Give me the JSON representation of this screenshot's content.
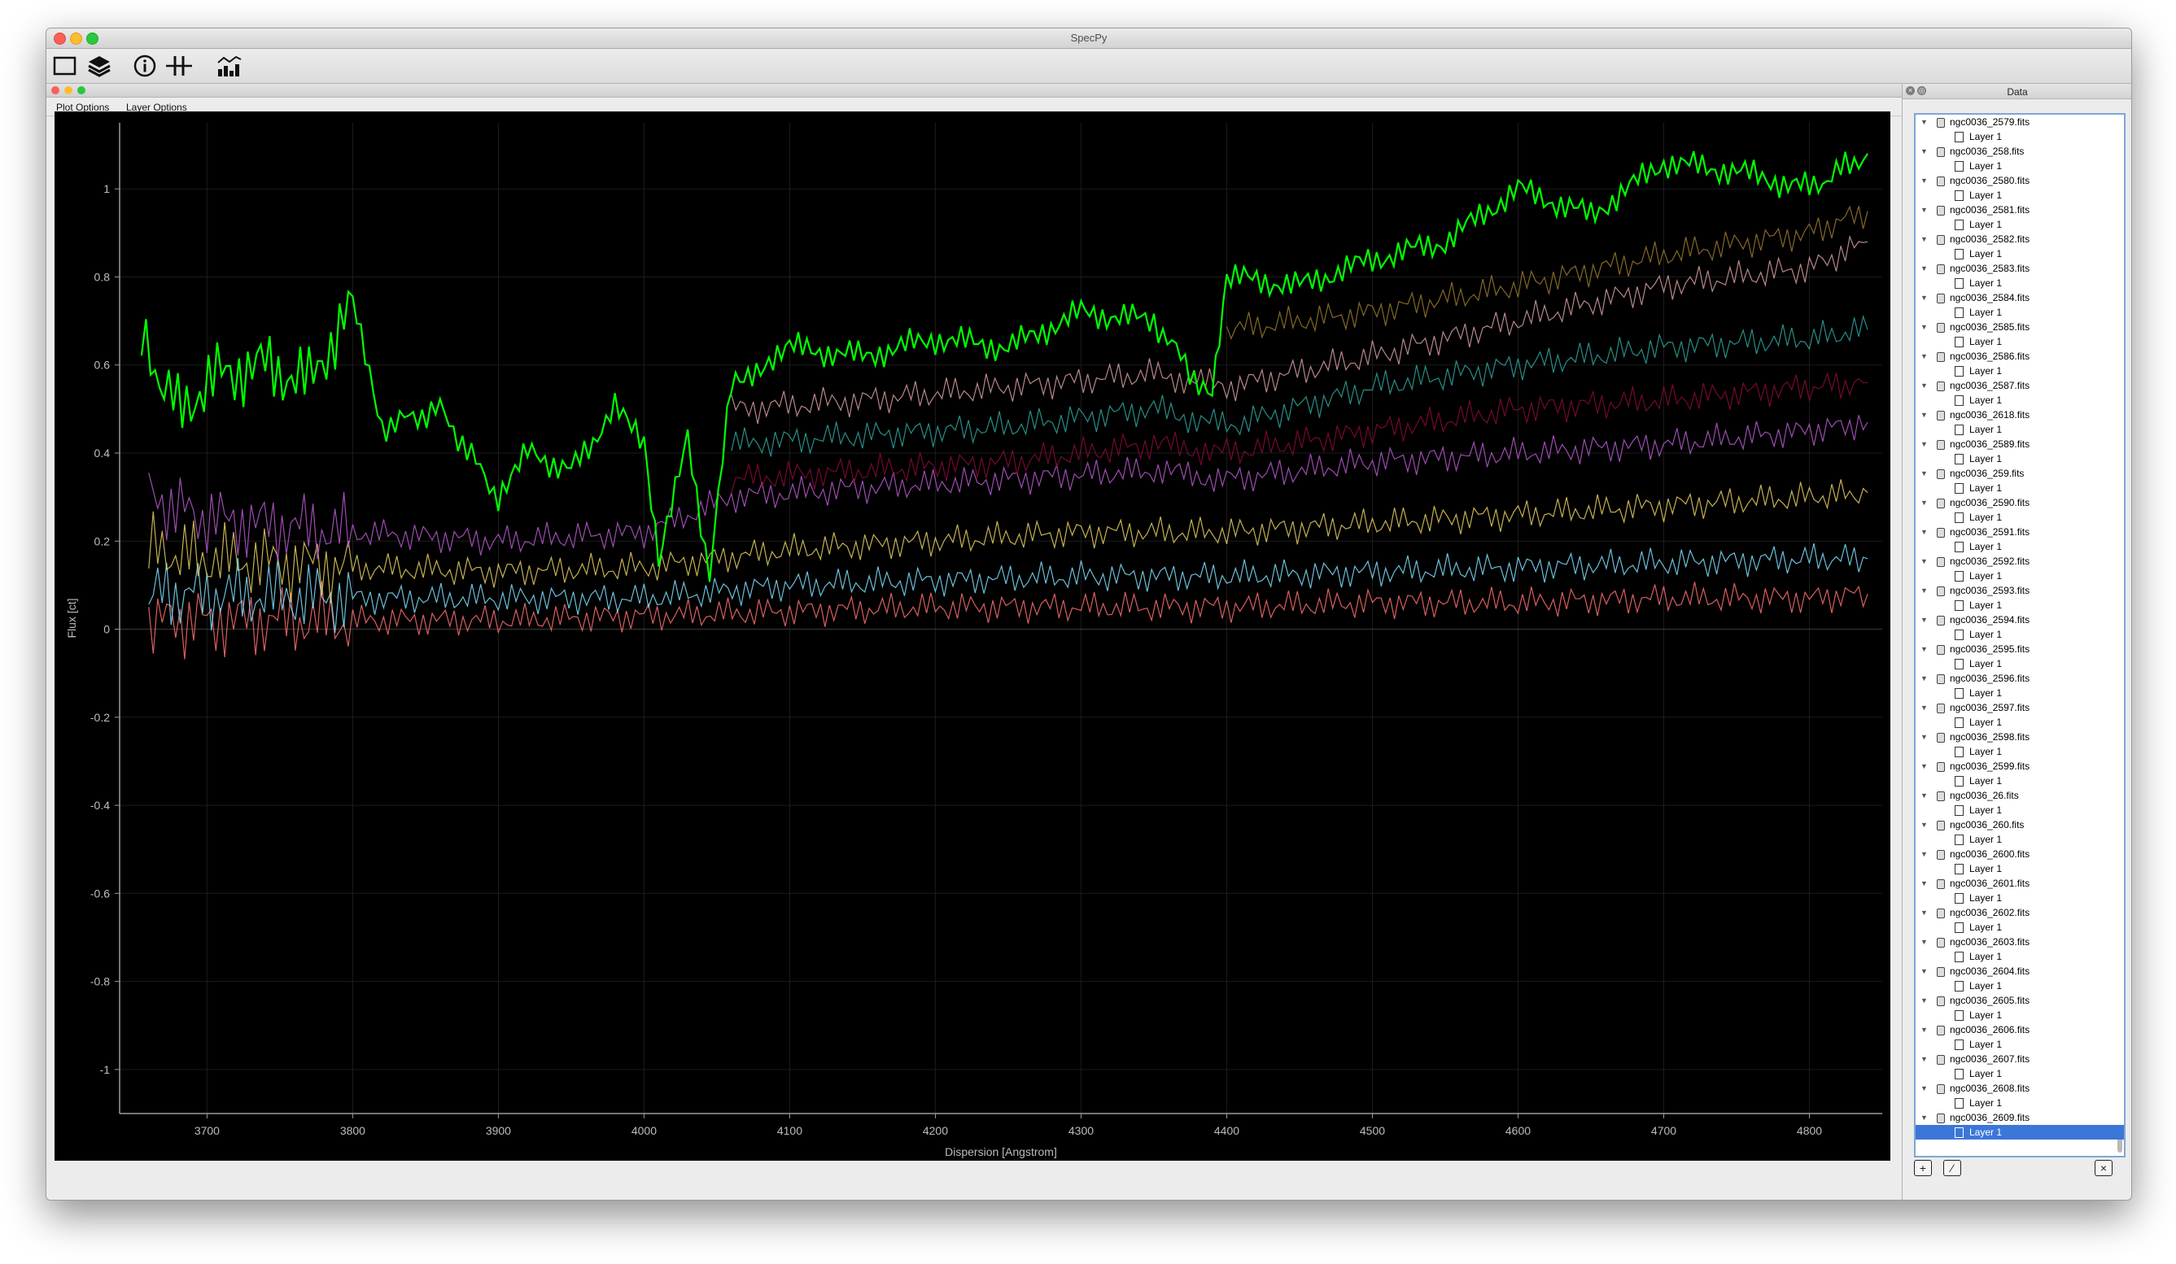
{
  "window": {
    "title": "SpecPy"
  },
  "toolbar": {
    "tools": [
      {
        "name": "rectangle-select-icon"
      },
      {
        "name": "layers-icon"
      },
      {
        "name": "info-icon"
      },
      {
        "name": "spectral-line-icon"
      },
      {
        "name": "statistics-icon"
      }
    ]
  },
  "subwindow": {
    "menu": {
      "plot_options": "Plot Options",
      "layer_options": "Layer Options"
    }
  },
  "chart_data": {
    "type": "line",
    "title": "",
    "xlabel": "Dispersion [Angstrom]",
    "ylabel": "Flux [ct]",
    "xlim": [
      3640,
      4850
    ],
    "ylim": [
      -1.1,
      1.15
    ],
    "x_ticks": [
      3700,
      3800,
      3900,
      4000,
      4100,
      4200,
      4300,
      4400,
      4500,
      4600,
      4700,
      4800
    ],
    "y_ticks": [
      -1,
      -0.8,
      -0.6,
      -0.4,
      -0.2,
      0,
      0.2,
      0.4,
      0.6,
      0.8,
      1
    ],
    "grid": true,
    "background": "#000000",
    "series": [
      {
        "color": "#00ff00",
        "x": [
          3655,
          3680,
          3710,
          3740,
          3770,
          3800,
          3820,
          3860,
          3900,
          3920,
          3950,
          3980,
          4000,
          4010,
          4030,
          4045,
          4060,
          4080,
          4100,
          4150,
          4200,
          4250,
          4300,
          4350,
          4390,
          4400,
          4450,
          4500,
          4550,
          4600,
          4650,
          4700,
          4750,
          4800,
          4840
        ],
        "y": [
          0.65,
          0.5,
          0.58,
          0.6,
          0.56,
          0.74,
          0.46,
          0.5,
          0.3,
          0.4,
          0.36,
          0.5,
          0.42,
          0.14,
          0.44,
          0.12,
          0.56,
          0.6,
          0.64,
          0.62,
          0.66,
          0.64,
          0.72,
          0.7,
          0.52,
          0.8,
          0.78,
          0.84,
          0.88,
          1.0,
          0.94,
          1.06,
          1.04,
          1.0,
          1.08
        ]
      },
      {
        "color": "#9b7a2e",
        "x": [
          4400,
          4500,
          4600,
          4700,
          4800,
          4840
        ],
        "y": [
          0.68,
          0.72,
          0.78,
          0.85,
          0.9,
          0.95
        ]
      },
      {
        "color": "#d9a0a0",
        "x": [
          4060,
          4150,
          4250,
          4350,
          4400,
          4500,
          4600,
          4700,
          4800,
          4840
        ],
        "y": [
          0.5,
          0.52,
          0.55,
          0.58,
          0.55,
          0.62,
          0.7,
          0.78,
          0.82,
          0.88
        ]
      },
      {
        "color": "#2fa7a0",
        "x": [
          4060,
          4150,
          4250,
          4350,
          4400,
          4500,
          4600,
          4700,
          4800,
          4840
        ],
        "y": [
          0.42,
          0.44,
          0.46,
          0.5,
          0.46,
          0.55,
          0.6,
          0.64,
          0.66,
          0.68
        ]
      },
      {
        "color": "#8b0a3a",
        "x": [
          4060,
          4150,
          4250,
          4350,
          4400,
          4500,
          4600,
          4700,
          4800,
          4840
        ],
        "y": [
          0.34,
          0.36,
          0.38,
          0.42,
          0.4,
          0.45,
          0.5,
          0.52,
          0.55,
          0.56
        ]
      },
      {
        "color": "#b85ad0",
        "x": [
          3660,
          3700,
          3800,
          3900,
          4000,
          4060,
          4150,
          4250,
          4350,
          4400,
          4500,
          4600,
          4700,
          4800,
          4840
        ],
        "y": [
          0.3,
          0.25,
          0.22,
          0.2,
          0.22,
          0.3,
          0.32,
          0.34,
          0.36,
          0.34,
          0.38,
          0.4,
          0.42,
          0.45,
          0.47
        ]
      },
      {
        "color": "#e8d060",
        "x": [
          3660,
          3700,
          3800,
          3900,
          4000,
          4100,
          4200,
          4300,
          4400,
          4500,
          4600,
          4700,
          4800,
          4840
        ],
        "y": [
          0.18,
          0.16,
          0.14,
          0.13,
          0.14,
          0.18,
          0.2,
          0.22,
          0.22,
          0.24,
          0.26,
          0.28,
          0.3,
          0.31
        ]
      },
      {
        "color": "#7fe0ff",
        "x": [
          3660,
          3700,
          3800,
          3900,
          4000,
          4100,
          4200,
          4300,
          4400,
          4500,
          4600,
          4700,
          4800,
          4840
        ],
        "y": [
          0.08,
          0.08,
          0.07,
          0.07,
          0.07,
          0.1,
          0.11,
          0.12,
          0.12,
          0.13,
          0.14,
          0.15,
          0.16,
          0.16
        ]
      },
      {
        "color": "#ff7070",
        "x": [
          3660,
          3700,
          3800,
          3900,
          4000,
          4100,
          4200,
          4300,
          4400,
          4500,
          4600,
          4700,
          4800,
          4840
        ],
        "y": [
          0.02,
          0.02,
          0.02,
          0.02,
          0.03,
          0.04,
          0.05,
          0.05,
          0.05,
          0.06,
          0.06,
          0.07,
          0.07,
          0.08
        ]
      }
    ]
  },
  "panel": {
    "title": "Data",
    "close_glyph": "×",
    "float_glyph": "◎",
    "files": [
      "ngc0036_2579.fits",
      "ngc0036_258.fits",
      "ngc0036_2580.fits",
      "ngc0036_2581.fits",
      "ngc0036_2582.fits",
      "ngc0036_2583.fits",
      "ngc0036_2584.fits",
      "ngc0036_2585.fits",
      "ngc0036_2586.fits",
      "ngc0036_2587.fits",
      "ngc0036_2618.fits",
      "ngc0036_2589.fits",
      "ngc0036_259.fits",
      "ngc0036_2590.fits",
      "ngc0036_2591.fits",
      "ngc0036_2592.fits",
      "ngc0036_2593.fits",
      "ngc0036_2594.fits",
      "ngc0036_2595.fits",
      "ngc0036_2596.fits",
      "ngc0036_2597.fits",
      "ngc0036_2598.fits",
      "ngc0036_2599.fits",
      "ngc0036_26.fits",
      "ngc0036_260.fits",
      "ngc0036_2600.fits",
      "ngc0036_2601.fits",
      "ngc0036_2602.fits",
      "ngc0036_2603.fits",
      "ngc0036_2604.fits",
      "ngc0036_2605.fits",
      "ngc0036_2606.fits",
      "ngc0036_2607.fits",
      "ngc0036_2608.fits",
      "ngc0036_2609.fits"
    ],
    "layer_label": "Layer 1",
    "expand_glyph": "▼",
    "selected_index": 34,
    "buttons": {
      "add": "+",
      "edit": "⁄",
      "remove": "×"
    }
  }
}
